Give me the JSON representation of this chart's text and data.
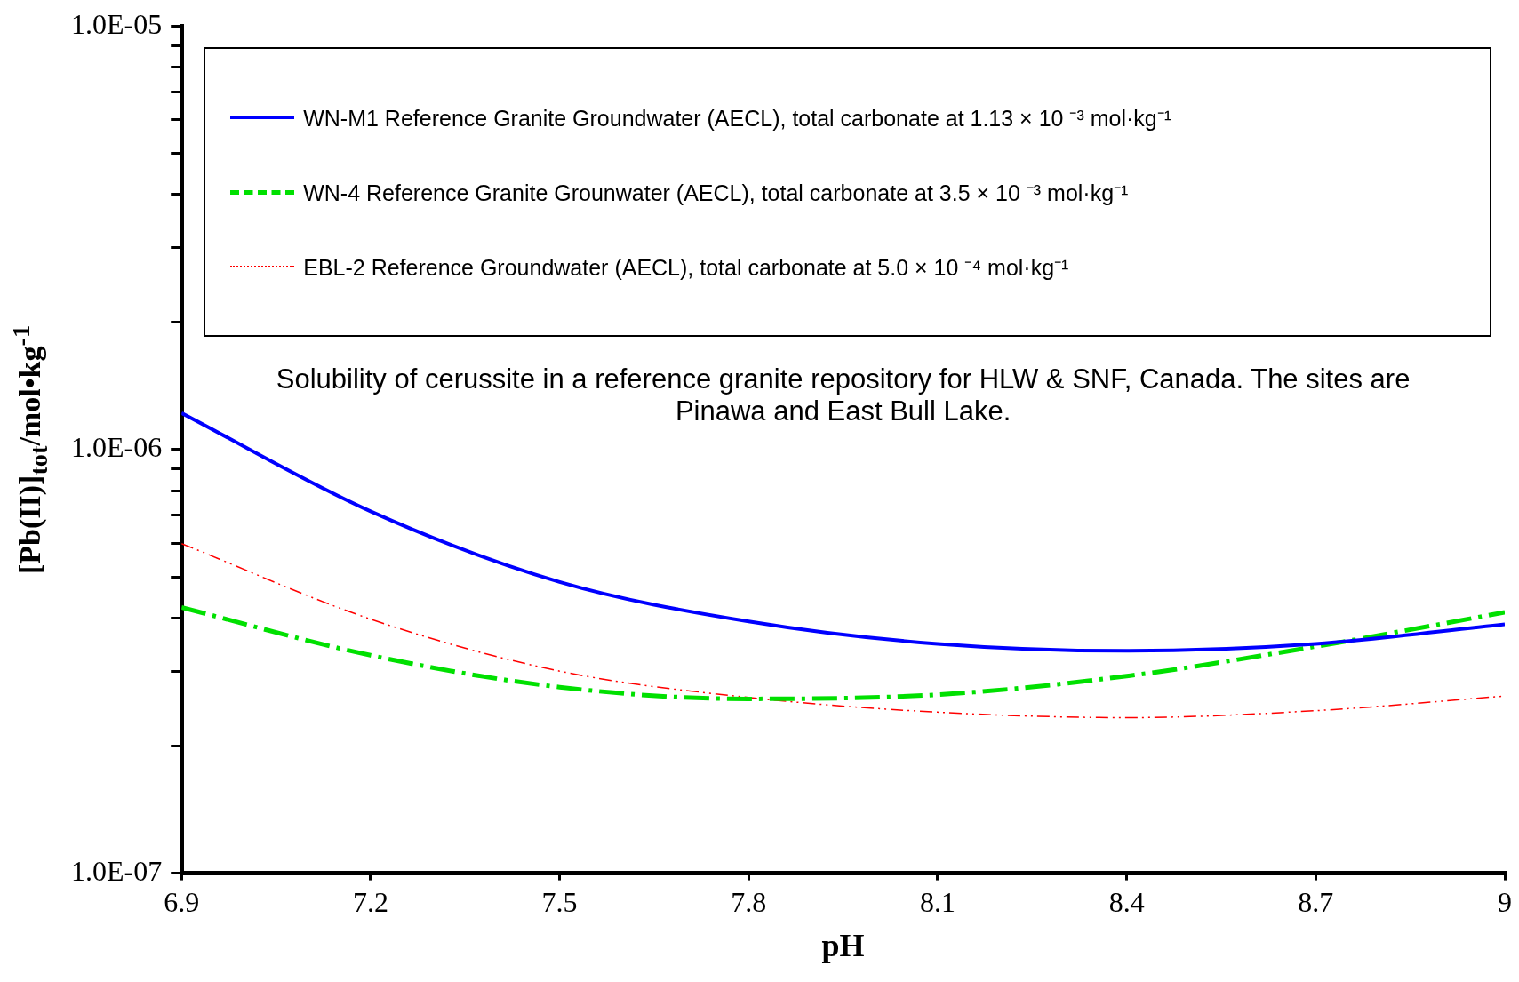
{
  "chart_data": {
    "type": "line",
    "xlabel": "pH",
    "ylabel": "[Pb(II)]$_{tot}$/mol•kg$^{-1}$",
    "log": "y",
    "grid": false,
    "legend": "top",
    "marker": "none",
    "xlim": [
      6.9,
      9
    ],
    "xticks": [
      6.9,
      7.2,
      7.5,
      7.8,
      8.1,
      8.4,
      8.7,
      9
    ],
    "ylim": [
      1e-07,
      1e-05
    ],
    "yticks": [
      {
        "value": 1e-07,
        "label": "1.0E-07"
      },
      {
        "value": 2e-07,
        "label": null
      },
      {
        "value": 3e-07,
        "label": null
      },
      {
        "value": 4e-07,
        "label": null
      },
      {
        "value": 5e-07,
        "label": null
      },
      {
        "value": 6e-07,
        "label": null
      },
      {
        "value": 7e-07,
        "label": null
      },
      {
        "value": 8e-07,
        "label": null
      },
      {
        "value": 9e-07,
        "label": null
      },
      {
        "value": 1e-06,
        "label": "1.0E-06"
      },
      {
        "value": 2e-06,
        "label": null
      },
      {
        "value": 3e-06,
        "label": null
      },
      {
        "value": 4e-06,
        "label": null
      },
      {
        "value": 5e-06,
        "label": null
      },
      {
        "value": 6e-06,
        "label": null
      },
      {
        "value": 7e-06,
        "label": null
      },
      {
        "value": 8e-06,
        "label": null
      },
      {
        "value": 9e-06,
        "label": null
      },
      {
        "value": 1e-05,
        "label": "1.0E-05"
      }
    ],
    "x": [
      6.9,
      7.2,
      7.5,
      7.8,
      8.1,
      8.4,
      8.7,
      9
    ],
    "series": [
      {
        "name": "WN-M1 Reference Granite Groundwater (AECL), total carbonate at  1.13 × 10 ⁻³ mol·kg⁻¹",
        "color": "#0000ff",
        "line_style": "solid",
        "values": [
          1.22e-06,
          7.15e-07,
          4.87e-07,
          3.93e-07,
          3.48e-07,
          3.35e-07,
          3.48e-07,
          3.87e-07
        ]
      },
      {
        "name": "WN-4 Reference Granite Grounwater (AECL), total carbonate at 3.5 × 10 ⁻³ mol·kg⁻¹",
        "color": "#00e000",
        "line_style": "dashed",
        "values": [
          4.24e-07,
          3.27e-07,
          2.75e-07,
          2.58e-07,
          2.64e-07,
          2.92e-07,
          3.43e-07,
          4.13e-07
        ]
      },
      {
        "name": "EBL-2 Reference Groundwater (AECL), total carbonate at 5.0 × 10 ⁻⁴ mol·kg⁻¹",
        "color": "#ff0000",
        "line_style": "dotted",
        "values": [
          6e-07,
          3.98e-07,
          3e-07,
          2.6e-07,
          2.4e-07,
          2.33e-07,
          2.42e-07,
          2.62e-07
        ]
      }
    ],
    "annotations": [
      "Solubility of cerussite  in a reference  granite repository for HLW & SNF, Canada.  The sites are Pinawa and East Bull Lake."
    ]
  }
}
